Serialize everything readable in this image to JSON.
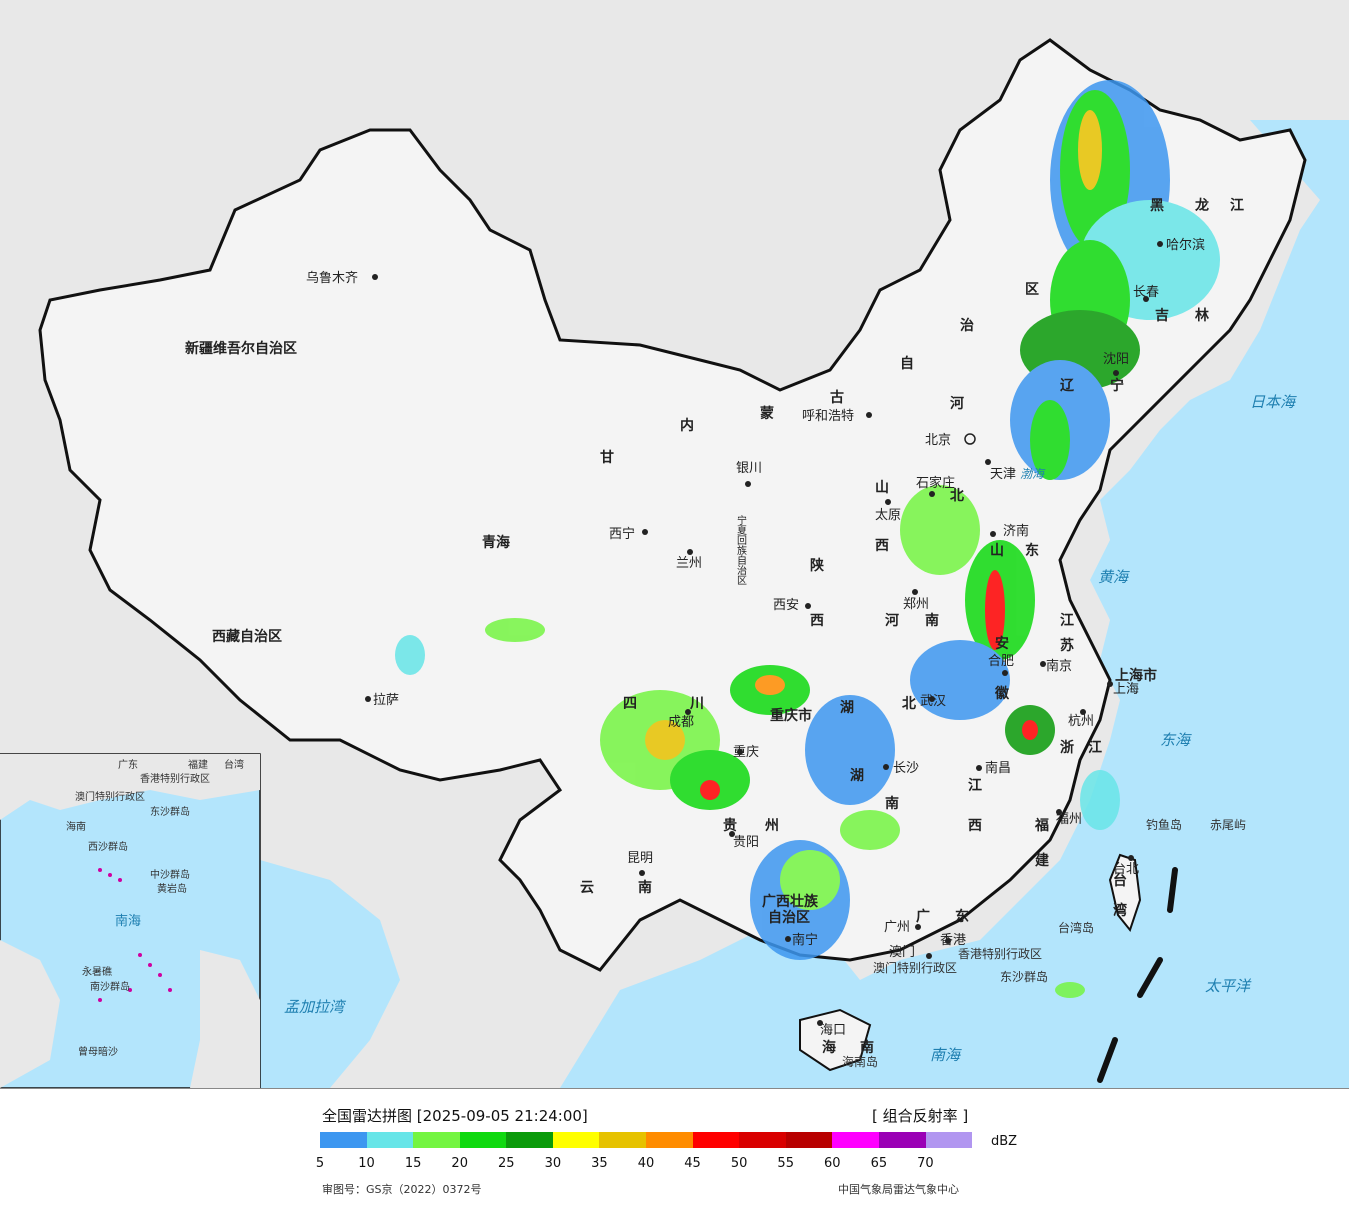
{
  "title": "全国雷达拼图 [2025-09-05 21:24:00]",
  "product": "[ 组合反射率 ]",
  "unit": "dBZ",
  "approval_number": "审图号：GS京（2022）0372号",
  "agency": "中国气象局雷达气象中心",
  "legend": {
    "colors": [
      "#3d97f0",
      "#67e5e8",
      "#74f542",
      "#0fd90f",
      "#0a9a0a",
      "#ffff00",
      "#e6c200",
      "#ff8c00",
      "#ff0000",
      "#d90000",
      "#b80000",
      "#ff00ff",
      "#9a00b5",
      "#b196f0"
    ],
    "ticks": [
      "5",
      "10",
      "15",
      "20",
      "25",
      "30",
      "35",
      "40",
      "45",
      "50",
      "55",
      "60",
      "65",
      "70"
    ]
  },
  "regions": [
    "新疆维吾尔自治区",
    "西藏自治区",
    "青海",
    "甘",
    "内",
    "蒙",
    "古",
    "自",
    "治",
    "区",
    "黑",
    "龙",
    "江",
    "吉",
    "林",
    "辽",
    "宁",
    "河",
    "北",
    "山",
    "西",
    "陕",
    "西",
    "四",
    "川",
    "云",
    "南",
    "贵",
    "州",
    "广西壮族",
    "自治区",
    "广",
    "东",
    "湖",
    "南",
    "湖",
    "北",
    "河",
    "南",
    "山",
    "东",
    "江",
    "苏",
    "安",
    "徽",
    "浙",
    "江",
    "江",
    "西",
    "福",
    "建",
    "台",
    "湾",
    "海",
    "南",
    "宁夏回族自治区",
    "重庆市",
    "上海市",
    "天津",
    "北京"
  ],
  "cities": [
    "乌鲁木齐",
    "拉萨",
    "西宁",
    "兰州",
    "银川",
    "呼和浩特",
    "北京",
    "天津",
    "石家庄",
    "太原",
    "西安",
    "郑州",
    "济南",
    "南京",
    "合肥",
    "上海",
    "杭州",
    "武汉",
    "长沙",
    "南昌",
    "福州",
    "成都",
    "重庆",
    "贵阳",
    "昆明",
    "南宁",
    "广州",
    "香港",
    "澳门",
    "海口",
    "台北",
    "哈尔滨",
    "长春",
    "沈阳"
  ],
  "seas": [
    "日本海",
    "黄海",
    "东海",
    "太平洋",
    "南海",
    "孟加拉湾",
    "渤海"
  ],
  "islands": [
    "钓鱼岛",
    "赤尾屿",
    "东沙群岛",
    "海南岛",
    "台湾岛",
    "香港特别行政区",
    "澳门特别行政区"
  ],
  "inset_labels": [
    "广东",
    "福建",
    "台湾",
    "香港特别行政区",
    "澳门特别行政区",
    "海南",
    "西沙群岛",
    "中沙群岛",
    "黄岩岛",
    "南海",
    "南沙群岛",
    "永暑礁",
    "曾母暗沙",
    "东沙群岛"
  ],
  "colors": {
    "sea": "#b3e5fc",
    "land_foreign": "#e8e8e8",
    "land_china": "#f4f4f4",
    "border": "#111111"
  }
}
